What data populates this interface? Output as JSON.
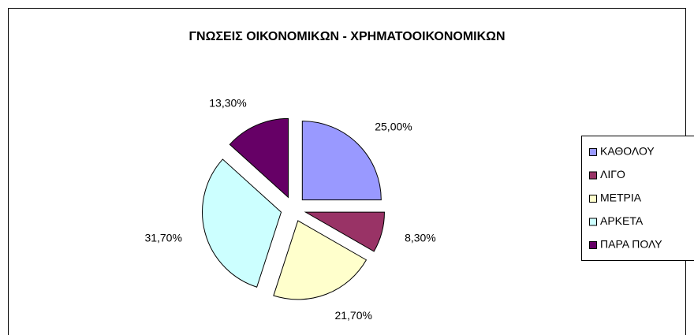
{
  "chart_data": {
    "type": "pie",
    "title": "ΓΝΩΣΕΙΣ ΟΙΚΟΝΟΜΙΚΩΝ - ΧΡΗΜΑΤΟΟΙΚΟΝΟΜΙΚΩΝ",
    "categories": [
      "ΚΑΘΟΛΟΥ",
      "ΛΙΓΟ",
      "ΜΕΤΡΙΑ",
      "ΑΡΚΕΤΑ",
      "ΠΑΡΑ ΠΟΛΥ"
    ],
    "values": [
      25,
      8.3,
      21.7,
      31.7,
      13.3
    ],
    "value_labels": [
      "25,00%",
      "8,30%",
      "21,70%",
      "31,70%",
      "13,30%"
    ],
    "colors": [
      "#9999ff",
      "#993366",
      "#ffffcc",
      "#ccffff",
      "#660066"
    ],
    "legend": "right"
  }
}
